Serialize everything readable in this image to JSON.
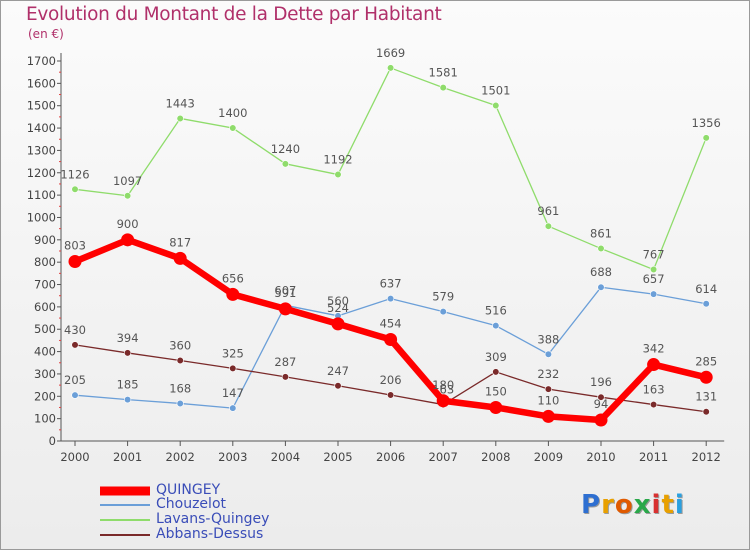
{
  "header": {
    "title": "Evolution du Montant de la Dette par Habitant",
    "subtitle": "(en €)"
  },
  "logo": {
    "text": "Proxiti",
    "letter_colors": [
      "#2e6fd1",
      "#e8a000",
      "#e05a00",
      "#2aa84a",
      "#d83030",
      "#e8a000",
      "#2aa0e0"
    ]
  },
  "chart_data": {
    "type": "line",
    "title": "Evolution du Montant de la Dette par Habitant",
    "subtitle": "(en €)",
    "xlabel": "",
    "ylabel": "",
    "x": [
      "2000",
      "2001",
      "2002",
      "2003",
      "2004",
      "2005",
      "2006",
      "2007",
      "2008",
      "2009",
      "2010",
      "2011",
      "2012"
    ],
    "ylim": [
      0,
      1700
    ],
    "yticks": [
      0,
      100,
      200,
      300,
      400,
      500,
      600,
      700,
      800,
      900,
      1000,
      1100,
      1200,
      1300,
      1400,
      1500,
      1600,
      1700
    ],
    "grid": false,
    "legend_position": "bottom-left",
    "series": [
      {
        "name": "QUINGEY",
        "color": "#ff0000",
        "values": [
          803,
          900,
          817,
          656,
          591,
          524,
          454,
          180,
          150,
          110,
          94,
          342,
          285
        ]
      },
      {
        "name": "Chouzelot",
        "color": "#6b9fd8",
        "values": [
          205,
          185,
          168,
          147,
          607,
          560,
          637,
          579,
          516,
          388,
          688,
          657,
          614
        ]
      },
      {
        "name": "Lavans-Quingey",
        "color": "#8fdc6b",
        "values": [
          1126,
          1097,
          1443,
          1400,
          1240,
          1192,
          1669,
          1581,
          1501,
          961,
          861,
          767,
          1356
        ]
      },
      {
        "name": "Abbans-Dessus",
        "color": "#7a2a2a",
        "values": [
          430,
          394,
          360,
          325,
          287,
          247,
          206,
          163,
          309,
          232,
          196,
          163,
          131
        ]
      }
    ]
  }
}
